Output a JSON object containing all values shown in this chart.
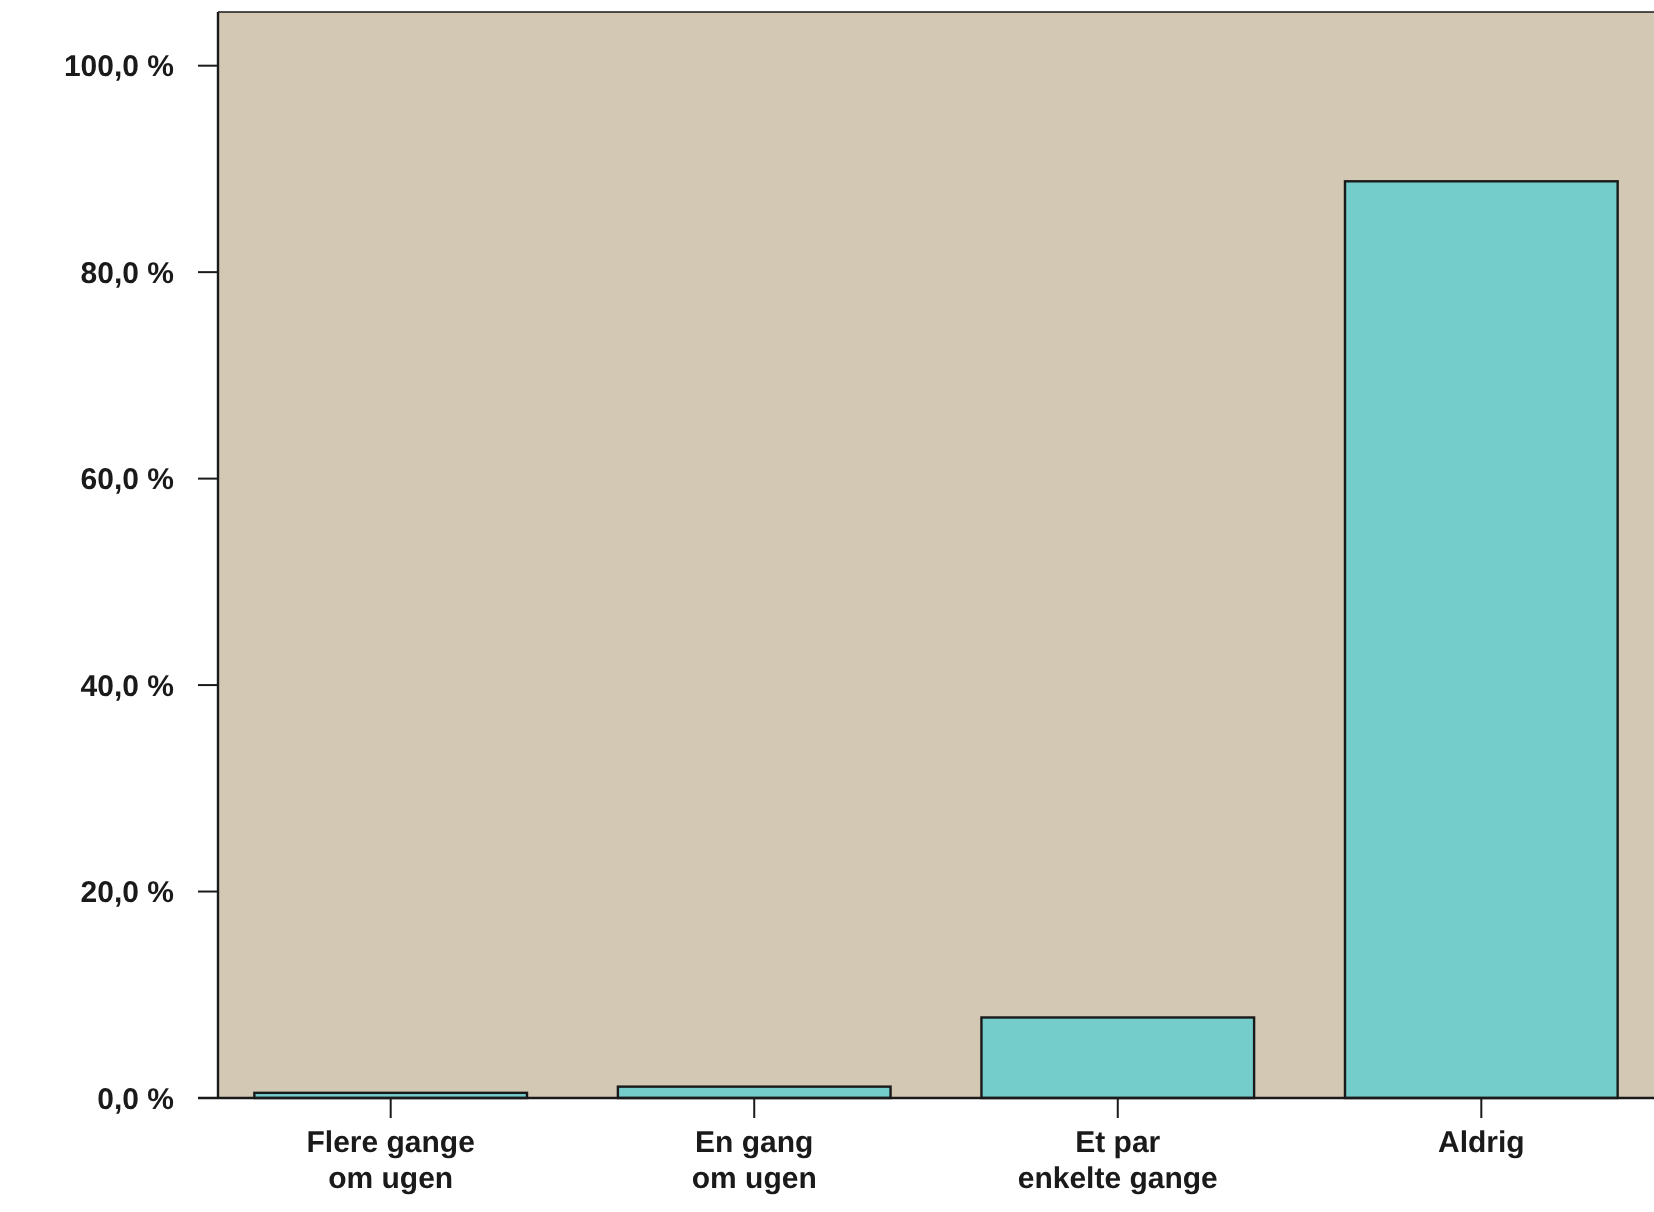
{
  "chart_data": {
    "type": "bar",
    "categories": [
      "Flere gange\nom ugen",
      "En gang\nom ugen",
      "Et par\nenkelte gange",
      "Aldrig"
    ],
    "values": [
      0.5,
      1.1,
      7.8,
      88.8
    ],
    "color": "#74cccb",
    "ylim": [
      0,
      105.2
    ],
    "yticks": [
      {
        "value": 0,
        "label": "0,0 %"
      },
      {
        "value": 20,
        "label": "20,0 %"
      },
      {
        "value": 40,
        "label": "40,0 %"
      },
      {
        "value": 60,
        "label": "60,0 %"
      },
      {
        "value": 80,
        "label": "80,0 %"
      },
      {
        "value": 100,
        "label": "100,0 %"
      }
    ],
    "grid": false
  }
}
